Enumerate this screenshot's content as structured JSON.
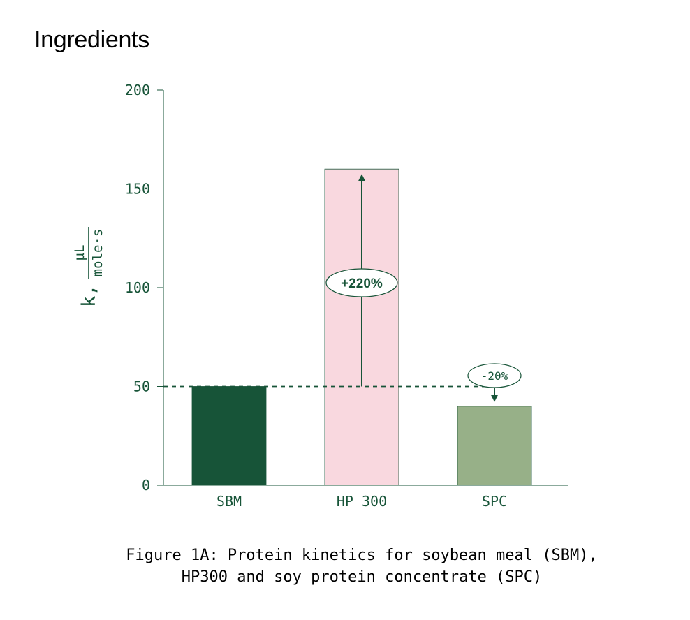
{
  "header": {
    "title": "Ingredients"
  },
  "chart_data": {
    "type": "bar",
    "categories": [
      "SBM",
      "HP 300",
      "SPC"
    ],
    "values": [
      50,
      160,
      40
    ],
    "ylim": [
      0,
      200
    ],
    "yticks": [
      0,
      50,
      100,
      150,
      200
    ],
    "ylabel": {
      "symbol": "k,",
      "numerator": "µL",
      "denominator": "mole·s"
    },
    "xlabel": "",
    "grid": false,
    "reference_line": {
      "y": 50,
      "style": "dashed"
    },
    "annotations": [
      {
        "category": "HP 300",
        "text": "+220%",
        "from": 50,
        "to": 160
      },
      {
        "category": "SPC",
        "text": "-20%",
        "from": 50,
        "to": 40
      }
    ],
    "colors": {
      "SBM": "#175438",
      "HP 300": "#f9d8df",
      "SPC": "#97b088",
      "axis": "#175438",
      "text": "#175438"
    }
  },
  "caption": {
    "line1": "Figure 1A: Protein kinetics for soybean meal (SBM),",
    "line2": "HP300 and soy protein concentrate (SPC)"
  }
}
